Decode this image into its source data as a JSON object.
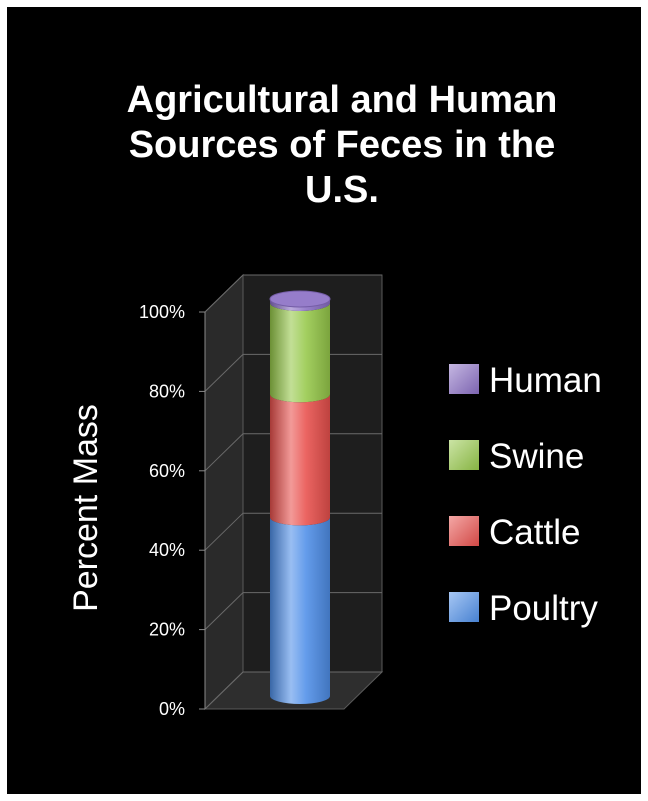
{
  "chart_data": {
    "type": "bar",
    "stacked": true,
    "style": "3d-cylinder",
    "title": "Agricultural and Human Sources of Feces in the U.S.",
    "title_lines": [
      "Agricultural and Human",
      "Sources of Feces in the",
      "U.S."
    ],
    "ylabel": "Percent Mass",
    "xlabel": "",
    "ylim": [
      0,
      100
    ],
    "y_unit": "%",
    "y_ticks": [
      "0%",
      "20%",
      "40%",
      "60%",
      "80%",
      "100%"
    ],
    "grid": true,
    "legend_position": "right",
    "categories": [
      ""
    ],
    "series": [
      {
        "name": "Poultry",
        "values": [
          45
        ],
        "color": "#4f8fe8"
      },
      {
        "name": "Cattle",
        "values": [
          31
        ],
        "color": "#e8504d"
      },
      {
        "name": "Swine",
        "values": [
          23
        ],
        "color": "#96c84a"
      },
      {
        "name": "Human",
        "values": [
          1
        ],
        "color": "#8a6fc4"
      }
    ],
    "legend_order": [
      "Human",
      "Swine",
      "Cattle",
      "Poultry"
    ]
  }
}
